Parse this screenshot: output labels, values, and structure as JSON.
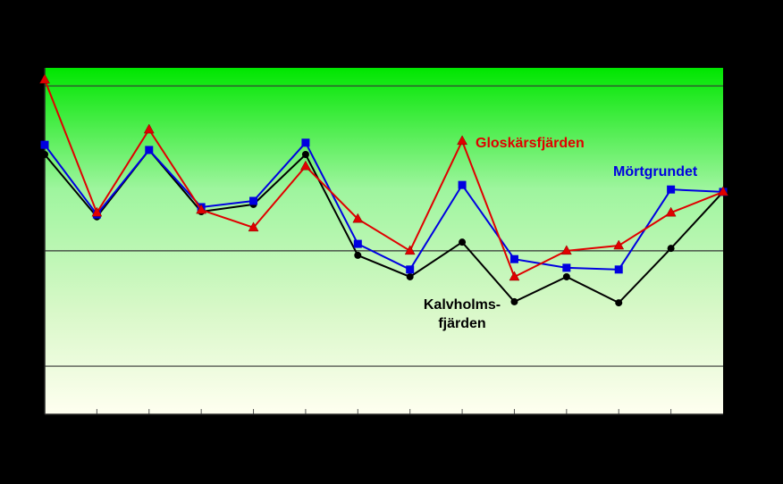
{
  "chart_data": {
    "type": "line",
    "categories": [
      null,
      null,
      null,
      null,
      null,
      null,
      null,
      null,
      null,
      null,
      null,
      null,
      null,
      null
    ],
    "ylim": [
      0,
      100
    ],
    "reference_lines": [
      94.8,
      47.2,
      13.9
    ],
    "series": [
      {
        "label_lines": [
          "Kalvholms-",
          "fjärden"
        ],
        "color": "#000000",
        "marker": "circle",
        "values": [
          75.0,
          57.0,
          76.3,
          58.5,
          60.6,
          75.0,
          45.9,
          39.7,
          49.7,
          32.5,
          39.7,
          32.2,
          47.9,
          64.2
        ]
      },
      {
        "label_lines": [
          "Mörtgrundet"
        ],
        "color": "#0000e0",
        "marker": "square",
        "values": [
          77.8,
          57.7,
          76.3,
          59.8,
          61.6,
          78.4,
          49.2,
          41.8,
          66.2,
          44.8,
          42.3,
          41.8,
          64.9,
          64.2
        ]
      },
      {
        "label_lines": [
          "Gloskärsfjärden"
        ],
        "color": "#e00000",
        "marker": "triangle",
        "values": [
          96.6,
          58.2,
          82.2,
          59.0,
          53.9,
          71.6,
          56.4,
          47.2,
          78.9,
          39.7,
          47.2,
          48.7,
          58.2,
          64.2
        ]
      }
    ]
  }
}
